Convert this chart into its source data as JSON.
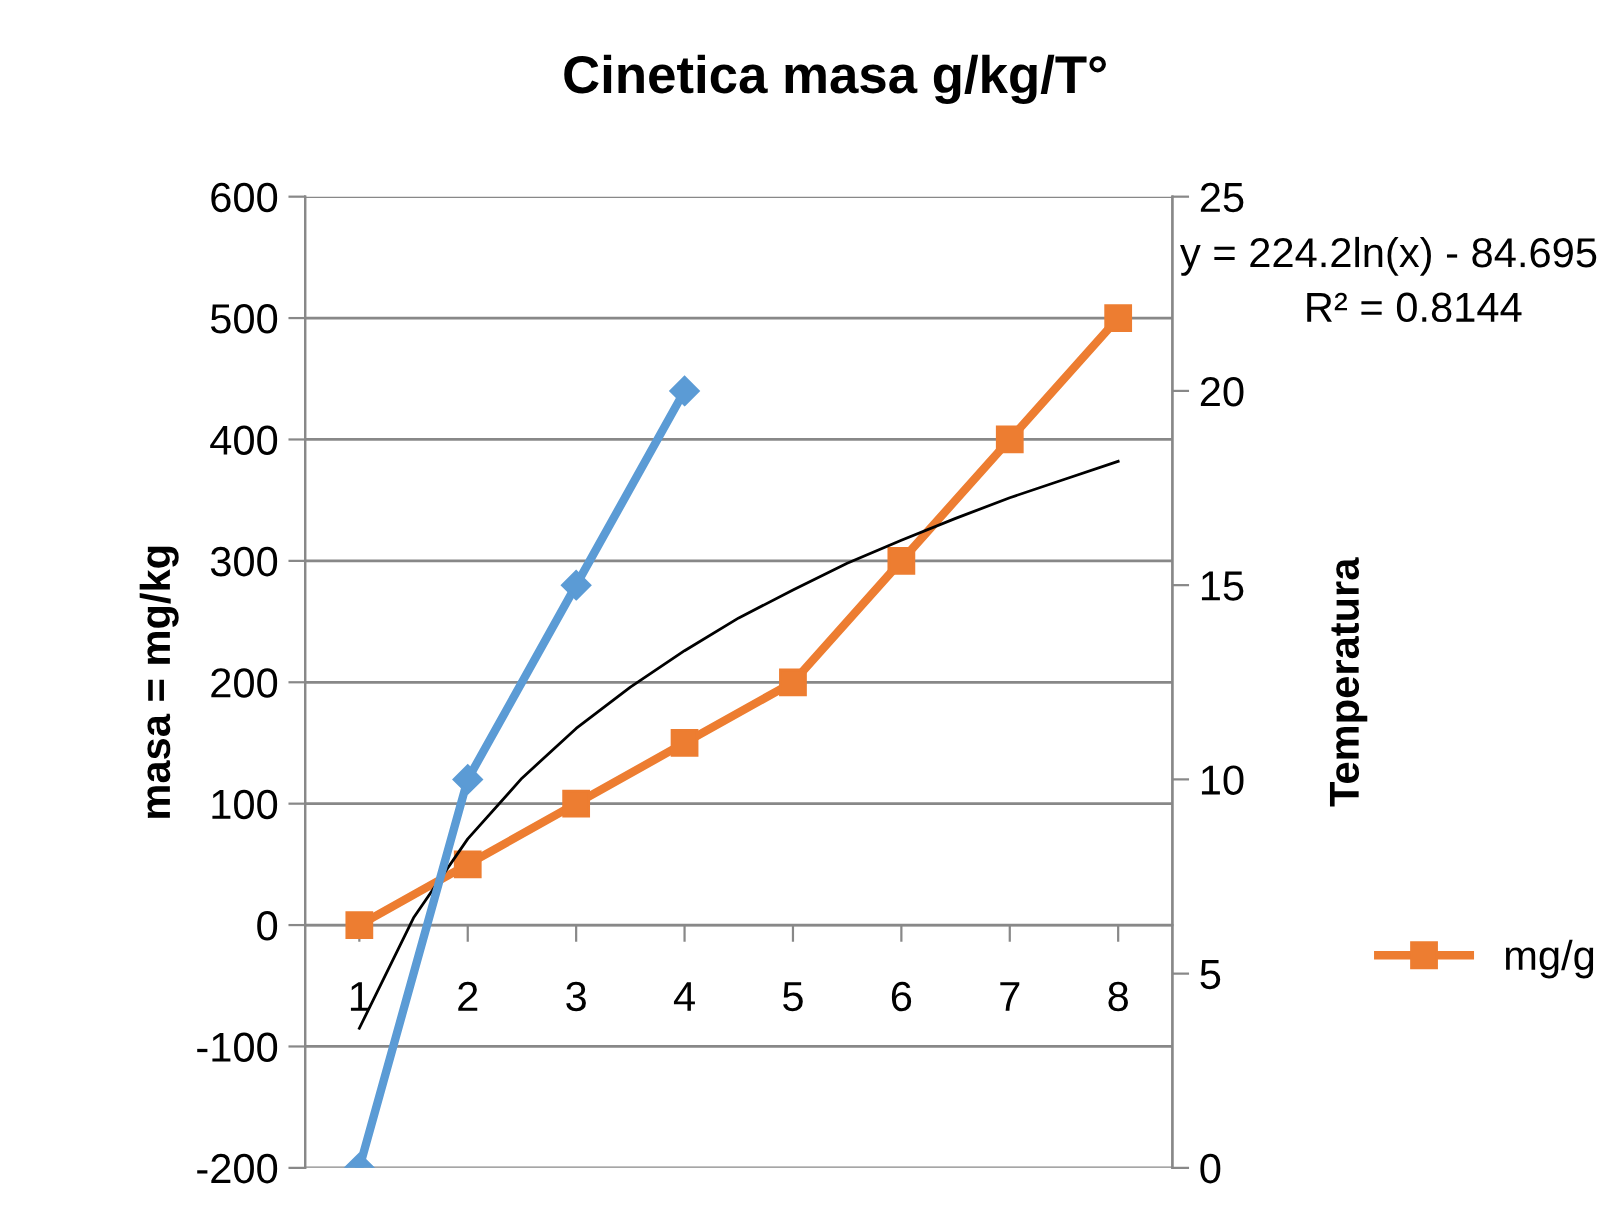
{
  "chart_data": {
    "type": "line",
    "title": "Cinetica masa g/kg/T°",
    "ylabel": "masa = mg/kg",
    "y2label": "Temperatura",
    "x": [
      1,
      2,
      3,
      4,
      5,
      6,
      7,
      8
    ],
    "xlim": [
      0.5,
      8.5
    ],
    "xticks": [
      1,
      2,
      3,
      4,
      5,
      6,
      7,
      8
    ],
    "ylim": [
      -200,
      600
    ],
    "yticks": [
      -200,
      -100,
      0,
      100,
      200,
      300,
      400,
      500,
      600
    ],
    "y2lim": [
      0,
      25
    ],
    "y2ticks": [
      0,
      5,
      10,
      15,
      20,
      25
    ],
    "grid": "y",
    "legend": "right",
    "line_style": "solid",
    "series": [
      {
        "name": "mg/g",
        "color": "#ed7d31",
        "marker": "square",
        "values": [
          0,
          50,
          100,
          150,
          200,
          300,
          400,
          500
        ]
      },
      {
        "color": "#5b9bd5",
        "marker": "diamond",
        "axis": "y2",
        "x": [
          1,
          2,
          3,
          4
        ],
        "values": [
          0,
          10,
          15,
          20
        ]
      },
      {
        "color": "#000000",
        "marker": "none",
        "x": [
          1,
          1.5,
          2,
          2.5,
          3,
          3.5,
          4,
          4.5,
          5,
          5.5,
          6,
          6.5,
          7,
          7.5,
          8
        ],
        "values": [
          -85,
          6,
          71,
          121,
          162,
          196,
          226,
          253,
          276,
          298,
          317,
          335,
          352,
          367,
          382
        ]
      }
    ],
    "annotations": [
      "y = 224.2ln(x) - 84.695",
      "R² = 0.8144"
    ]
  }
}
